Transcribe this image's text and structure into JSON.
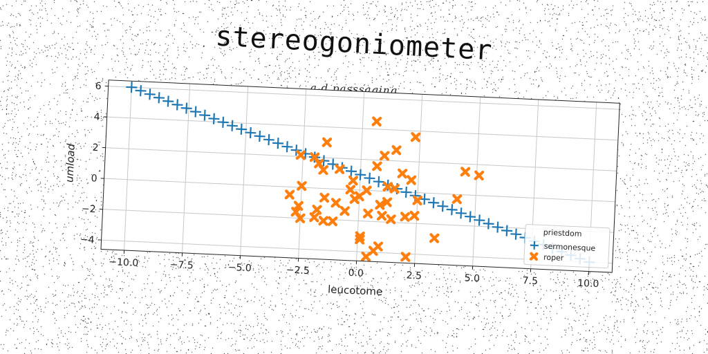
{
  "header": {
    "title": "stereogoniometer",
    "subtitle": "a d passsaging"
  },
  "chart_data": {
    "type": "scatter",
    "xlabel": "leucotome",
    "ylabel": "umload",
    "xlim": [
      -11,
      11
    ],
    "ylim": [
      -4.6,
      6.4
    ],
    "xticks": [
      -10.0,
      -7.5,
      -5.0,
      -2.5,
      0.0,
      2.5,
      5.0,
      7.5,
      10.0
    ],
    "yticks": [
      -4,
      -2,
      0,
      2,
      4,
      6
    ],
    "grid": true,
    "legend": {
      "title": "priestdom",
      "position": "lower-right"
    },
    "colors": {
      "sermonesque": "#1f77b4",
      "roper": "#ff7f0e"
    },
    "series": [
      {
        "name": "sermonesque",
        "marker": "plus",
        "x": [
          -10.0,
          -9.6,
          -9.2,
          -8.8,
          -8.4,
          -8.0,
          -7.6,
          -7.2,
          -6.8,
          -6.4,
          -6.0,
          -5.6,
          -5.2,
          -4.8,
          -4.4,
          -4.0,
          -3.6,
          -3.2,
          -2.8,
          -2.4,
          -2.0,
          -1.6,
          -1.2,
          -0.8,
          -0.4,
          0.0,
          0.4,
          0.8,
          1.2,
          1.6,
          2.0,
          2.4,
          2.8,
          3.2,
          3.6,
          4.0,
          4.4,
          4.8,
          5.2,
          5.6,
          6.0,
          6.4,
          6.8,
          7.2,
          7.6,
          8.0,
          8.4,
          8.8,
          9.2,
          9.6,
          10.0
        ],
        "y": [
          6.0,
          5.8,
          5.6,
          5.4,
          5.2,
          5.0,
          4.8,
          4.6,
          4.4,
          4.2,
          4.0,
          3.8,
          3.6,
          3.4,
          3.2,
          3.0,
          2.8,
          2.6,
          2.4,
          2.2,
          2.0,
          1.8,
          1.6,
          1.4,
          1.2,
          1.0,
          0.8,
          0.6,
          0.4,
          0.2,
          0.0,
          -0.2,
          -0.4,
          -0.6,
          -0.8,
          -1.0,
          -1.2,
          -1.4,
          -1.6,
          -1.8,
          -2.0,
          -2.2,
          -2.4,
          -2.6,
          -2.8,
          -3.0,
          -3.2,
          -3.4,
          -3.6,
          -3.8,
          -4.0
        ]
      },
      {
        "name": "roper",
        "marker": "x",
        "x": [
          0.6,
          -1.5,
          2.3,
          1.5,
          1.0,
          -2.6,
          -2.0,
          -1.8,
          0.7,
          -1.6,
          -0.9,
          1.8,
          4.5,
          5.1,
          2.2,
          -0.3,
          -2.5,
          1.2,
          1.5,
          0.3,
          -0.4,
          0.0,
          -1.5,
          -3.0,
          -2.6,
          -1.8,
          2.5,
          1.2,
          -0.2,
          0.9,
          -1.0,
          -0.6,
          1.0,
          0.4,
          -1.9,
          2.0,
          2.4,
          1.4,
          -2.5,
          -1.5,
          -1.1,
          3.3,
          0.1,
          0.1,
          0.9,
          0.7,
          2.1,
          0.4,
          4.2,
          -2.7
        ],
        "y": [
          4.5,
          3.0,
          3.6,
          2.7,
          2.3,
          2.1,
          2.0,
          1.6,
          1.6,
          1.2,
          1.3,
          1.2,
          1.5,
          1.3,
          0.8,
          0.6,
          0.1,
          0.3,
          0.2,
          0.0,
          0.0,
          -0.4,
          -0.6,
          -0.5,
          -1.2,
          -1.4,
          -0.5,
          -0.7,
          -0.6,
          -0.9,
          -0.9,
          -1.4,
          -1.6,
          -1.5,
          -1.9,
          -1.6,
          -1.5,
          -1.8,
          -2.0,
          -2.1,
          -2.1,
          -2.9,
          -3.0,
          -3.2,
          -3.6,
          -3.9,
          -4.2,
          -4.3,
          -0.3,
          -1.6
        ]
      }
    ]
  }
}
